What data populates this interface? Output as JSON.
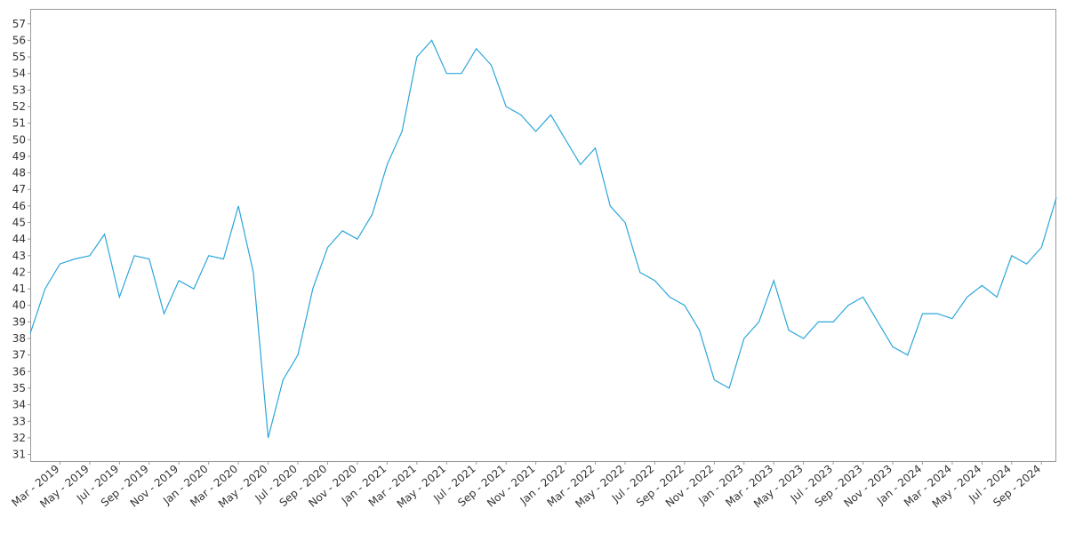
{
  "chart_data": {
    "type": "line",
    "color": "#2ba6da",
    "x": [
      "2019-01",
      "2019-02",
      "2019-03",
      "2019-04",
      "2019-05",
      "2019-06",
      "2019-07",
      "2019-08",
      "2019-09",
      "2019-10",
      "2019-11",
      "2019-12",
      "2020-01",
      "2020-02",
      "2020-03",
      "2020-04",
      "2020-05",
      "2020-06",
      "2020-07",
      "2020-08",
      "2020-09",
      "2020-10",
      "2020-11",
      "2020-12",
      "2021-01",
      "2021-02",
      "2021-03",
      "2021-04",
      "2021-05",
      "2021-06",
      "2021-07",
      "2021-08",
      "2021-09",
      "2021-10",
      "2021-11",
      "2021-12",
      "2022-01",
      "2022-02",
      "2022-03",
      "2022-04",
      "2022-05",
      "2022-06",
      "2022-07",
      "2022-08",
      "2022-09",
      "2022-10",
      "2022-11",
      "2022-12",
      "2023-01",
      "2023-02",
      "2023-03",
      "2023-04",
      "2023-05",
      "2023-06",
      "2023-07",
      "2023-08",
      "2023-09",
      "2023-10",
      "2023-11",
      "2023-12",
      "2024-01",
      "2024-02",
      "2024-03",
      "2024-04",
      "2024-05",
      "2024-06",
      "2024-07",
      "2024-08",
      "2024-09",
      "2024-10"
    ],
    "values": [
      38.3,
      41,
      42.5,
      42.8,
      43,
      44.3,
      40.5,
      43,
      42.8,
      39.5,
      41.5,
      41,
      43,
      42.8,
      46,
      42,
      32,
      35.5,
      37,
      41,
      43.5,
      44.5,
      44,
      45.5,
      48.5,
      50.5,
      55,
      56,
      54,
      54,
      55.5,
      54.5,
      52,
      51.5,
      50.5,
      51.5,
      50,
      48.5,
      49.5,
      46,
      45,
      42,
      41.5,
      40.5,
      40,
      38.5,
      35.5,
      35,
      38,
      39,
      41.5,
      38.5,
      38,
      39,
      39,
      40,
      40.5,
      39,
      37.5,
      37,
      39.5,
      39.5,
      39.2,
      40.5,
      41.2,
      40.5,
      43,
      42.5,
      43.5,
      46.5
    ],
    "xlim": [
      "2019-01",
      "2024-10"
    ],
    "xticks": [
      {
        "value": "2019-03",
        "label": "Mar - 2019"
      },
      {
        "value": "2019-05",
        "label": "May - 2019"
      },
      {
        "value": "2019-07",
        "label": "Jul - 2019"
      },
      {
        "value": "2019-09",
        "label": "Sep - 2019"
      },
      {
        "value": "2019-11",
        "label": "Nov - 2019"
      },
      {
        "value": "2020-01",
        "label": "Jan - 2020"
      },
      {
        "value": "2020-03",
        "label": "Mar - 2020"
      },
      {
        "value": "2020-05",
        "label": "May - 2020"
      },
      {
        "value": "2020-07",
        "label": "Jul - 2020"
      },
      {
        "value": "2020-09",
        "label": "Sep - 2020"
      },
      {
        "value": "2020-11",
        "label": "Nov - 2020"
      },
      {
        "value": "2021-01",
        "label": "Jan - 2021"
      },
      {
        "value": "2021-03",
        "label": "Mar - 2021"
      },
      {
        "value": "2021-05",
        "label": "May - 2021"
      },
      {
        "value": "2021-07",
        "label": "Jul - 2021"
      },
      {
        "value": "2021-09",
        "label": "Sep - 2021"
      },
      {
        "value": "2021-11",
        "label": "Nov - 2021"
      },
      {
        "value": "2022-01",
        "label": "Jan - 2022"
      },
      {
        "value": "2022-03",
        "label": "Mar - 2022"
      },
      {
        "value": "2022-05",
        "label": "May - 2022"
      },
      {
        "value": "2022-07",
        "label": "Jul - 2022"
      },
      {
        "value": "2022-09",
        "label": "Sep - 2022"
      },
      {
        "value": "2022-11",
        "label": "Nov - 2022"
      },
      {
        "value": "2023-01",
        "label": "Jan - 2023"
      },
      {
        "value": "2023-03",
        "label": "Mar - 2023"
      },
      {
        "value": "2023-05",
        "label": "May - 2023"
      },
      {
        "value": "2023-07",
        "label": "Jul - 2023"
      },
      {
        "value": "2023-09",
        "label": "Sep - 2023"
      },
      {
        "value": "2023-11",
        "label": "Nov - 2023"
      },
      {
        "value": "2024-01",
        "label": "Jan - 2024"
      },
      {
        "value": "2024-03",
        "label": "Mar - 2024"
      },
      {
        "value": "2024-05",
        "label": "May - 2024"
      },
      {
        "value": "2024-07",
        "label": "Jul - 2024"
      },
      {
        "value": "2024-09",
        "label": "Sep - 2024"
      }
    ],
    "ylim": [
      30.6,
      57.9
    ],
    "yticks": [
      31,
      32,
      33,
      34,
      35,
      36,
      37,
      38,
      39,
      40,
      41,
      42,
      43,
      44,
      45,
      46,
      47,
      48,
      49,
      50,
      51,
      52,
      53,
      54,
      55,
      56,
      57
    ],
    "grid": false
  }
}
